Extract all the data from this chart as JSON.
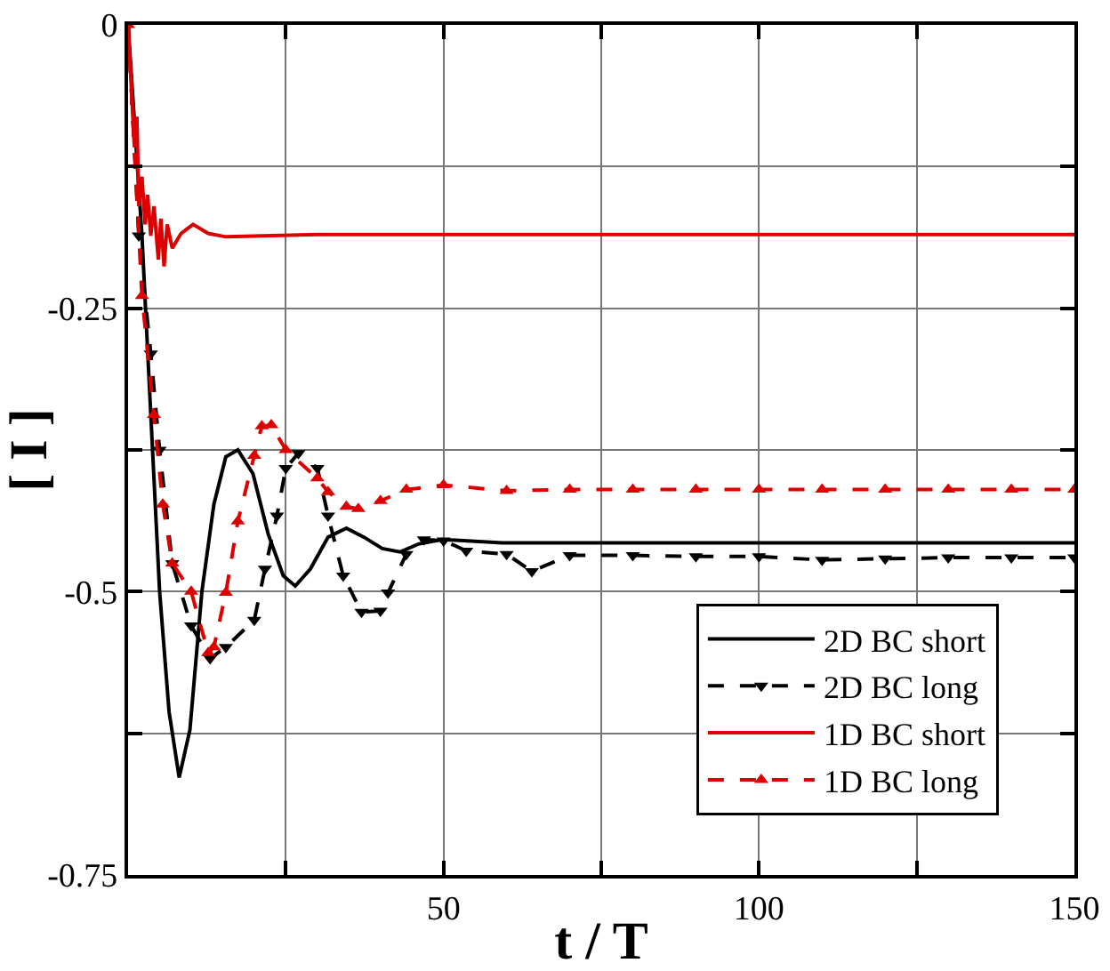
{
  "chart_data": {
    "type": "line",
    "xlabel": "t / T",
    "ylabel": "[ I ]",
    "xlim": [
      0,
      150
    ],
    "ylim": [
      -0.75,
      0
    ],
    "xticks": [
      {
        "value": 0,
        "label": null
      },
      {
        "value": 25,
        "label": null
      },
      50,
      {
        "value": 75,
        "label": null
      },
      100,
      {
        "value": 125,
        "label": null
      },
      150
    ],
    "yticks": [
      {
        "value": -0.75,
        "label": "-0.75"
      },
      {
        "value": -0.625,
        "label": null
      },
      {
        "value": -0.5,
        "label": "-0.5"
      },
      {
        "value": -0.375,
        "label": null
      },
      {
        "value": -0.25,
        "label": "-0.25"
      },
      {
        "value": -0.125,
        "label": null
      },
      0
    ],
    "grid": true,
    "legend": "bottom right",
    "series": [
      {
        "name": "2D BC short",
        "color": "#000000",
        "line_style": "solid",
        "marker": "none",
        "x": [
          0,
          2.2,
          3.6,
          5,
          6.5,
          8.1,
          9.8,
          11.7,
          13.6,
          15.5,
          17.4,
          19.8,
          22.2,
          24.6,
          26.5,
          28.9,
          31.7,
          34.6,
          37.4,
          40.3,
          43.1,
          46,
          49.8,
          59.3,
          80,
          100,
          120,
          150
        ],
        "values": [
          0,
          -0.186,
          -0.344,
          -0.5,
          -0.606,
          -0.664,
          -0.622,
          -0.5,
          -0.423,
          -0.381,
          -0.375,
          -0.396,
          -0.449,
          -0.486,
          -0.495,
          -0.48,
          -0.452,
          -0.444,
          -0.452,
          -0.462,
          -0.465,
          -0.458,
          -0.454,
          -0.457,
          -0.457,
          -0.457,
          -0.457,
          -0.457
        ]
      },
      {
        "name": "2D BC long",
        "color": "#000000",
        "line_style": "dashed",
        "marker": "triangle-down",
        "x": [
          0,
          1.7,
          3.6,
          5,
          7,
          10,
          13,
          15.5,
          20,
          21.7,
          23.6,
          25,
          27,
          30,
          31.7,
          34.1,
          37,
          40,
          41.2,
          44.1,
          46.9,
          50,
          53.6,
          60,
          64,
          70,
          80,
          90,
          100,
          110,
          120,
          130,
          140,
          150
        ],
        "values": [
          0,
          -0.186,
          -0.29,
          -0.375,
          -0.475,
          -0.53,
          -0.559,
          -0.549,
          -0.525,
          -0.48,
          -0.433,
          -0.391,
          -0.378,
          -0.391,
          -0.433,
          -0.486,
          -0.518,
          -0.517,
          -0.501,
          -0.467,
          -0.454,
          -0.455,
          -0.464,
          -0.467,
          -0.482,
          -0.468,
          -0.468,
          -0.469,
          -0.469,
          -0.472,
          -0.471,
          -0.47,
          -0.47,
          -0.47
        ]
      },
      {
        "name": "1D BC short",
        "color": "#dd0000",
        "line_style": "solid",
        "marker": "none",
        "x": [
          0,
          1,
          1.4,
          1.7,
          2.2,
          2.7,
          3.1,
          3.6,
          4.1,
          4.8,
          5.2,
          5.7,
          6.2,
          7,
          8.4,
          10.3,
          12.7,
          15.5,
          30,
          60,
          100,
          150
        ],
        "values": [
          0,
          -0.108,
          -0.081,
          -0.16,
          -0.134,
          -0.176,
          -0.15,
          -0.186,
          -0.16,
          -0.207,
          -0.171,
          -0.213,
          -0.176,
          -0.197,
          -0.184,
          -0.176,
          -0.184,
          -0.187,
          -0.185,
          -0.185,
          -0.185,
          -0.185
        ]
      },
      {
        "name": "1D BC long",
        "color": "#dd0000",
        "line_style": "dashed",
        "marker": "triangle",
        "x": [
          0,
          2.2,
          4.1,
          5.5,
          7,
          10,
          12.7,
          13.6,
          15.5,
          17.4,
          20,
          21.2,
          22.7,
          25,
          30,
          31.7,
          34.6,
          36.5,
          40,
          44.1,
          50,
          60,
          70,
          80,
          90,
          100,
          110,
          120,
          130,
          140,
          150
        ],
        "values": [
          0,
          -0.239,
          -0.344,
          -0.423,
          -0.475,
          -0.5,
          -0.554,
          -0.549,
          -0.501,
          -0.438,
          -0.38,
          -0.354,
          -0.353,
          -0.375,
          -0.4,
          -0.412,
          -0.425,
          -0.427,
          -0.42,
          -0.41,
          -0.406,
          -0.411,
          -0.41,
          -0.41,
          -0.41,
          -0.41,
          -0.41,
          -0.41,
          -0.41,
          -0.41,
          -0.41
        ]
      }
    ]
  }
}
